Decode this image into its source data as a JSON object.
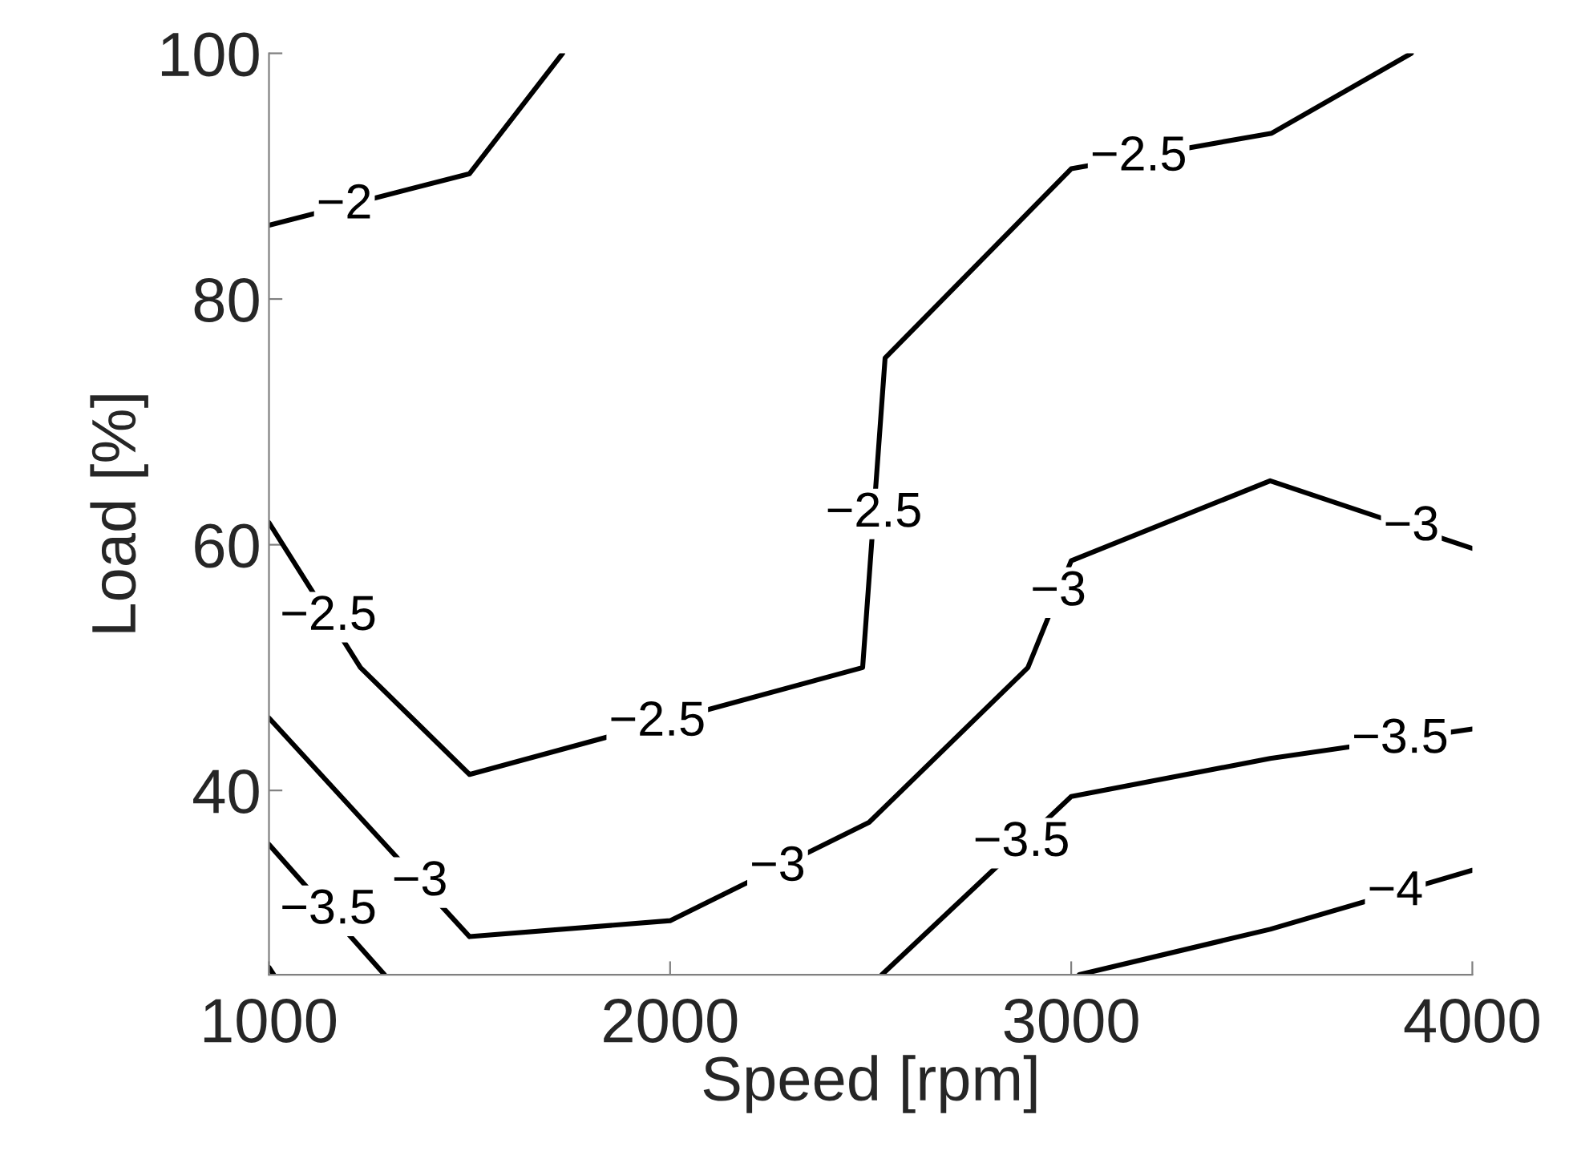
{
  "chart_data": {
    "type": "line",
    "xlabel": "Speed [rpm]",
    "ylabel": "Load [%]",
    "xlim": [
      1000,
      4000
    ],
    "ylim": [
      25,
      100
    ],
    "xticks": [
      1000,
      2000,
      3000,
      4000
    ],
    "yticks": [
      40,
      60,
      80,
      100
    ],
    "grid": false,
    "marker": "none",
    "line_style": "solid",
    "series": [
      {
        "color": "#000000",
        "x": [
          1000,
          1500,
          1732
        ],
        "values": [
          86,
          90.2,
          100
        ]
      },
      {
        "color": "#000000",
        "x": [
          1000,
          1228,
          1500,
          2480,
          2536,
          3000,
          3500,
          3848
        ],
        "values": [
          61.8,
          50.0,
          41.3,
          50.0,
          75.2,
          90.6,
          93.5,
          100
        ]
      },
      {
        "color": "#000000",
        "x": [
          1000,
          1500,
          2000,
          2496,
          2892,
          3000,
          3496,
          4000
        ],
        "values": [
          45.9,
          28.1,
          29.4,
          37.4,
          50.0,
          58.7,
          65.2,
          59.7
        ]
      },
      {
        "color": "#000000",
        "x": [
          1000,
          1288
        ],
        "values": [
          35.6,
          25
        ]
      },
      {
        "color": "#000000",
        "x": [
          2528,
          3000,
          3496,
          4000
        ],
        "values": [
          25,
          39.5,
          42.6,
          45.0
        ]
      },
      {
        "color": "#000000",
        "x": [
          3020,
          3496,
          4000
        ],
        "values": [
          25,
          28.7,
          33.5
        ]
      },
      {
        "color": "#000000",
        "x": [
          1000,
          1012
        ],
        "values": [
          25.6,
          25
        ]
      }
    ],
    "annotations": [
      {
        "text": "−2",
        "x": 1188,
        "y": 87.6
      },
      {
        "text": "−2.5",
        "x": 3168,
        "y": 91.5
      },
      {
        "text": "−2.5",
        "x": 2508,
        "y": 62.5
      },
      {
        "text": "−2.5",
        "x": 1148,
        "y": 54.1
      },
      {
        "text": "−2.5",
        "x": 1968,
        "y": 45.5
      },
      {
        "text": "−3",
        "x": 3848,
        "y": 61.4
      },
      {
        "text": "−3",
        "x": 2968,
        "y": 56.1
      },
      {
        "text": "−3",
        "x": 2268,
        "y": 33.7
      },
      {
        "text": "−3",
        "x": 1376,
        "y": 32.5
      },
      {
        "text": "−3.5",
        "x": 1148,
        "y": 30.2
      },
      {
        "text": "−3.5",
        "x": 2876,
        "y": 35.7
      },
      {
        "text": "−3.5",
        "x": 3820,
        "y": 44.1
      },
      {
        "text": "−4",
        "x": 3808,
        "y": 31.7
      }
    ]
  }
}
